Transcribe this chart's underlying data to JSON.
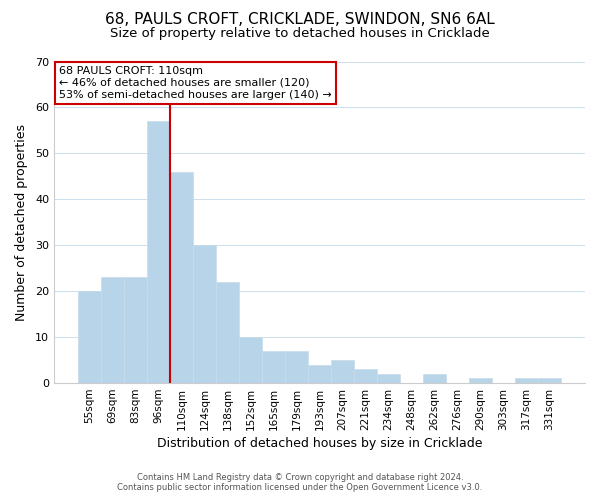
{
  "title1": "68, PAULS CROFT, CRICKLADE, SWINDON, SN6 6AL",
  "title2": "Size of property relative to detached houses in Cricklade",
  "xlabel": "Distribution of detached houses by size in Cricklade",
  "ylabel": "Number of detached properties",
  "bar_labels": [
    "55sqm",
    "69sqm",
    "83sqm",
    "96sqm",
    "110sqm",
    "124sqm",
    "138sqm",
    "152sqm",
    "165sqm",
    "179sqm",
    "193sqm",
    "207sqm",
    "221sqm",
    "234sqm",
    "248sqm",
    "262sqm",
    "276sqm",
    "290sqm",
    "303sqm",
    "317sqm",
    "331sqm"
  ],
  "bar_values": [
    20,
    23,
    23,
    57,
    46,
    30,
    22,
    10,
    7,
    7,
    4,
    5,
    3,
    2,
    0,
    2,
    0,
    1,
    0,
    1,
    1
  ],
  "bar_color": "#b8d4e8",
  "bar_edge_color": "#c8dcea",
  "ref_line_x": 3.5,
  "ref_line_color": "#cc0000",
  "ylim": [
    0,
    70
  ],
  "yticks": [
    0,
    10,
    20,
    30,
    40,
    50,
    60,
    70
  ],
  "annotation_title": "68 PAULS CROFT: 110sqm",
  "annotation_line1": "← 46% of detached houses are smaller (120)",
  "annotation_line2": "53% of semi-detached houses are larger (140) →",
  "annotation_box_color": "#ffffff",
  "annotation_box_edge": "#cc0000",
  "footer1": "Contains HM Land Registry data © Crown copyright and database right 2024.",
  "footer2": "Contains public sector information licensed under the Open Government Licence v3.0.",
  "bg_color": "#ffffff",
  "grid_color": "#cce0ee",
  "title1_fontsize": 11,
  "title2_fontsize": 9.5
}
